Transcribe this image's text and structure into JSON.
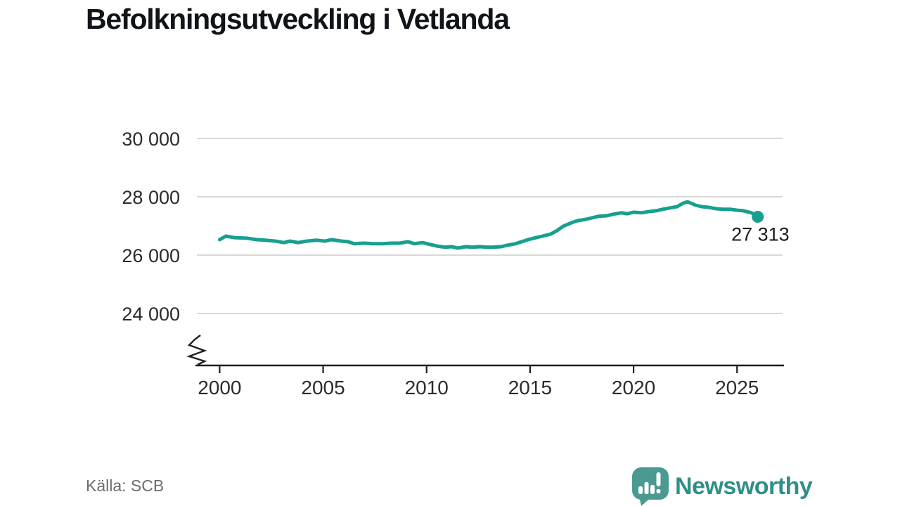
{
  "title": "Befolkningsutveckling i Vetlanda",
  "footer": {
    "source_label": "Källa: SCB",
    "brand_name": "Newsworthy"
  },
  "colors": {
    "line": "#16a08f",
    "grid": "#d9d9d9",
    "axis": "#1f1f1f",
    "logo_bubble": "#4a9a92",
    "brand_text": "#2f8f87"
  },
  "chart_data": {
    "type": "line",
    "title": "Befolkningsutveckling i Vetlanda",
    "xlabel": "",
    "ylabel": "",
    "grid": "horizontal",
    "legend": "none",
    "axis_break_bottom_left": true,
    "xlim": [
      1998.9,
      2027.2
    ],
    "ygrid_range": [
      24000,
      30000
    ],
    "y_ticks": [
      {
        "value": 24000,
        "label": "24 000"
      },
      {
        "value": 26000,
        "label": "26 000"
      },
      {
        "value": 28000,
        "label": "28 000"
      },
      {
        "value": 30000,
        "label": "30 000"
      }
    ],
    "x_ticks": [
      {
        "value": 2000,
        "label": "2000"
      },
      {
        "value": 2005,
        "label": "2005"
      },
      {
        "value": 2010,
        "label": "2010"
      },
      {
        "value": 2015,
        "label": "2015"
      },
      {
        "value": 2020,
        "label": "2020"
      },
      {
        "value": 2025,
        "label": "2025"
      }
    ],
    "end_label": "27 313",
    "end_value": 27313,
    "points": [
      [
        2000.0,
        26530
      ],
      [
        2000.3,
        26650
      ],
      [
        2000.7,
        26600
      ],
      [
        2001.3,
        26580
      ],
      [
        2001.8,
        26530
      ],
      [
        2002.2,
        26510
      ],
      [
        2002.7,
        26480
      ],
      [
        2003.1,
        26430
      ],
      [
        2003.4,
        26480
      ],
      [
        2003.8,
        26430
      ],
      [
        2004.2,
        26480
      ],
      [
        2004.7,
        26510
      ],
      [
        2005.1,
        26480
      ],
      [
        2005.4,
        26530
      ],
      [
        2005.9,
        26480
      ],
      [
        2006.2,
        26460
      ],
      [
        2006.5,
        26390
      ],
      [
        2007.0,
        26410
      ],
      [
        2007.4,
        26390
      ],
      [
        2007.9,
        26390
      ],
      [
        2008.3,
        26410
      ],
      [
        2008.7,
        26410
      ],
      [
        2009.1,
        26460
      ],
      [
        2009.4,
        26390
      ],
      [
        2009.8,
        26430
      ],
      [
        2010.2,
        26360
      ],
      [
        2010.5,
        26310
      ],
      [
        2010.9,
        26270
      ],
      [
        2011.2,
        26290
      ],
      [
        2011.5,
        26240
      ],
      [
        2011.9,
        26290
      ],
      [
        2012.2,
        26270
      ],
      [
        2012.6,
        26290
      ],
      [
        2012.9,
        26270
      ],
      [
        2013.2,
        26270
      ],
      [
        2013.6,
        26290
      ],
      [
        2013.9,
        26340
      ],
      [
        2014.3,
        26390
      ],
      [
        2014.6,
        26460
      ],
      [
        2014.9,
        26530
      ],
      [
        2015.3,
        26600
      ],
      [
        2015.6,
        26650
      ],
      [
        2016.0,
        26720
      ],
      [
        2016.3,
        26840
      ],
      [
        2016.6,
        26990
      ],
      [
        2017.0,
        27110
      ],
      [
        2017.3,
        27180
      ],
      [
        2017.7,
        27230
      ],
      [
        2018.0,
        27280
      ],
      [
        2018.3,
        27330
      ],
      [
        2018.7,
        27350
      ],
      [
        2019.0,
        27400
      ],
      [
        2019.4,
        27450
      ],
      [
        2019.7,
        27420
      ],
      [
        2020.0,
        27470
      ],
      [
        2020.4,
        27450
      ],
      [
        2020.7,
        27490
      ],
      [
        2021.1,
        27520
      ],
      [
        2021.4,
        27570
      ],
      [
        2021.7,
        27610
      ],
      [
        2022.1,
        27660
      ],
      [
        2022.4,
        27780
      ],
      [
        2022.6,
        27830
      ],
      [
        2023.0,
        27710
      ],
      [
        2023.3,
        27660
      ],
      [
        2023.6,
        27640
      ],
      [
        2024.0,
        27590
      ],
      [
        2024.3,
        27570
      ],
      [
        2024.7,
        27570
      ],
      [
        2025.0,
        27540
      ],
      [
        2025.3,
        27520
      ],
      [
        2025.7,
        27450
      ],
      [
        2026.0,
        27313
      ]
    ]
  }
}
